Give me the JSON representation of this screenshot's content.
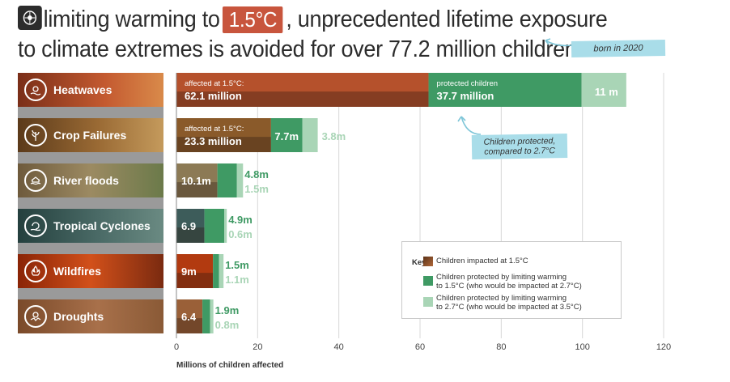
{
  "title": {
    "line1_pre": "limiting warming to",
    "line1_temp": "1.5°C",
    "line1_post": ", unprecedented lifetime exposure",
    "line2": "to climate extremes is avoided for over 77.2 million children"
  },
  "annotations": {
    "born": "born in 2020",
    "protected_note_line1": "Children protected,",
    "protected_note_line2": "compared to 2.7°C"
  },
  "key": {
    "title": "Key",
    "item1": "Children impacted at 1.5°C",
    "item2_line1": "Children protected by limiting warming",
    "item2_line2": "to 1.5°C (who would be impacted at 2.7°C)",
    "item3_line1": "Children protected by limiting warming",
    "item3_line2": "to 2.7°C (who would be impacted at 3.5°C)"
  },
  "colors": {
    "impacted": "#8b4a2c",
    "protected_15": "#3f9a64",
    "protected_27": "#a9d5b6",
    "heatwave_bg": "#b5512c",
    "crop_bg": "#8a5a2a",
    "flood_bg": "#8c7a55",
    "cyclone_bg": "#3d5c5a",
    "wildfire_bg": "#b23a10",
    "drought_bg": "#9a6038"
  },
  "chart_data": {
    "type": "bar",
    "orientation": "horizontal",
    "stacked": true,
    "xlabel": "Millions of children affected",
    "xlim": [
      0,
      120
    ],
    "xticks": [
      0,
      20,
      40,
      60,
      80,
      100,
      120
    ],
    "categories": [
      "Heatwaves",
      "Crop Failures",
      "River floods",
      "Tropical Cyclones",
      "Wildfires",
      "Droughts"
    ],
    "series": [
      {
        "name": "Children impacted at 1.5°C",
        "values": [
          62.1,
          23.3,
          10.1,
          6.9,
          9,
          6.4
        ]
      },
      {
        "name": "Children protected by limiting warming to 1.5°C (who would be impacted at 2.7°C)",
        "values": [
          37.7,
          7.7,
          4.8,
          4.9,
          1.5,
          1.9
        ]
      },
      {
        "name": "Children protected by limiting warming to 2.7°C (who would be impacted at 3.5°C)",
        "values": [
          11,
          3.8,
          1.5,
          0.6,
          1.1,
          0.8
        ]
      }
    ],
    "data_labels": {
      "impacted": [
        "62.1 million",
        "23.3 million",
        "10.1m",
        "6.9",
        "9m",
        "6.4"
      ],
      "protected_15": [
        "37.7 million",
        "7.7m",
        "4.8m",
        "4.9m",
        "1.5m",
        "1.9m"
      ],
      "protected_27": [
        "11 m",
        "3.8m",
        "1.5m",
        "0.6m",
        "1.1m",
        "0.8m"
      ]
    },
    "segment_prefixes": {
      "impacted": [
        "affected at 1.5°C:",
        "affected at 1.5°C:",
        "",
        "",
        "",
        ""
      ],
      "protected_15": [
        "protected children",
        "",
        "",
        "",
        "",
        ""
      ]
    }
  }
}
